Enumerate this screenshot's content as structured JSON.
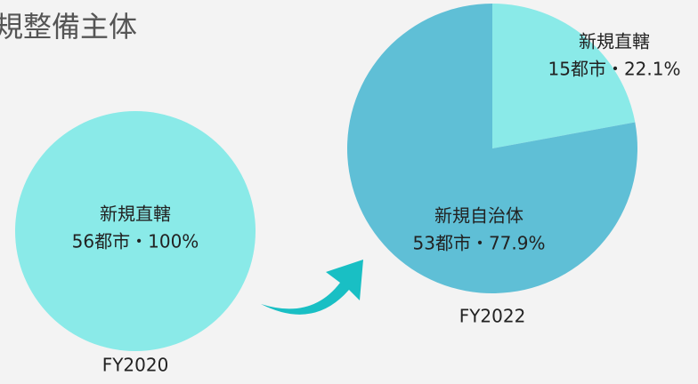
{
  "title": "規整備主体",
  "chart_data": [
    {
      "type": "pie",
      "caption": "FY2020",
      "categories": [
        "新規直轄"
      ],
      "values": [
        100
      ],
      "value_labels": [
        "56都市・100%"
      ],
      "colors": [
        "#8aeae8"
      ]
    },
    {
      "type": "pie",
      "caption": "FY2022",
      "categories": [
        "新規直轄",
        "新規自治体"
      ],
      "values": [
        22.1,
        77.9
      ],
      "value_labels": [
        "15都市・22.1%",
        "53都市・77.9%"
      ],
      "colors": [
        "#8aeae8",
        "#5fbfd6"
      ]
    }
  ]
}
